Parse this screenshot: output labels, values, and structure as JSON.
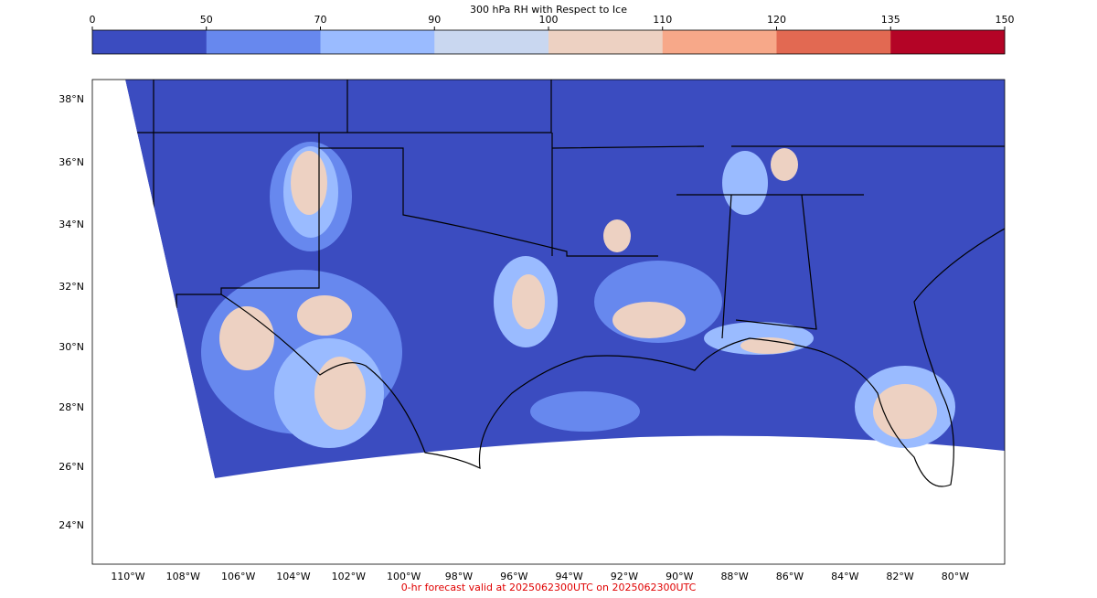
{
  "colorbar": {
    "title": "300 hPa RH with Respect to Ice",
    "ticks": [
      0,
      50,
      70,
      90,
      100,
      110,
      120,
      135,
      150
    ],
    "colors": [
      "#3b4cc0",
      "#6788ee",
      "#9abbff",
      "#c9d7f0",
      "#edd1c2",
      "#f7a889",
      "#e26952",
      "#b40426"
    ]
  },
  "map": {
    "lat_labels": [
      "38°N",
      "36°N",
      "34°N",
      "32°N",
      "30°N",
      "28°N",
      "26°N",
      "24°N"
    ],
    "lon_labels": [
      "110°W",
      "108°W",
      "106°W",
      "104°W",
      "102°W",
      "100°W",
      "98°W",
      "96°W",
      "94°W",
      "92°W",
      "90°W",
      "88°W",
      "86°W",
      "84°W",
      "82°W",
      "80°W"
    ]
  },
  "footer": "0-hr forecast valid at 2025062300UTC on 2025062300UTC"
}
